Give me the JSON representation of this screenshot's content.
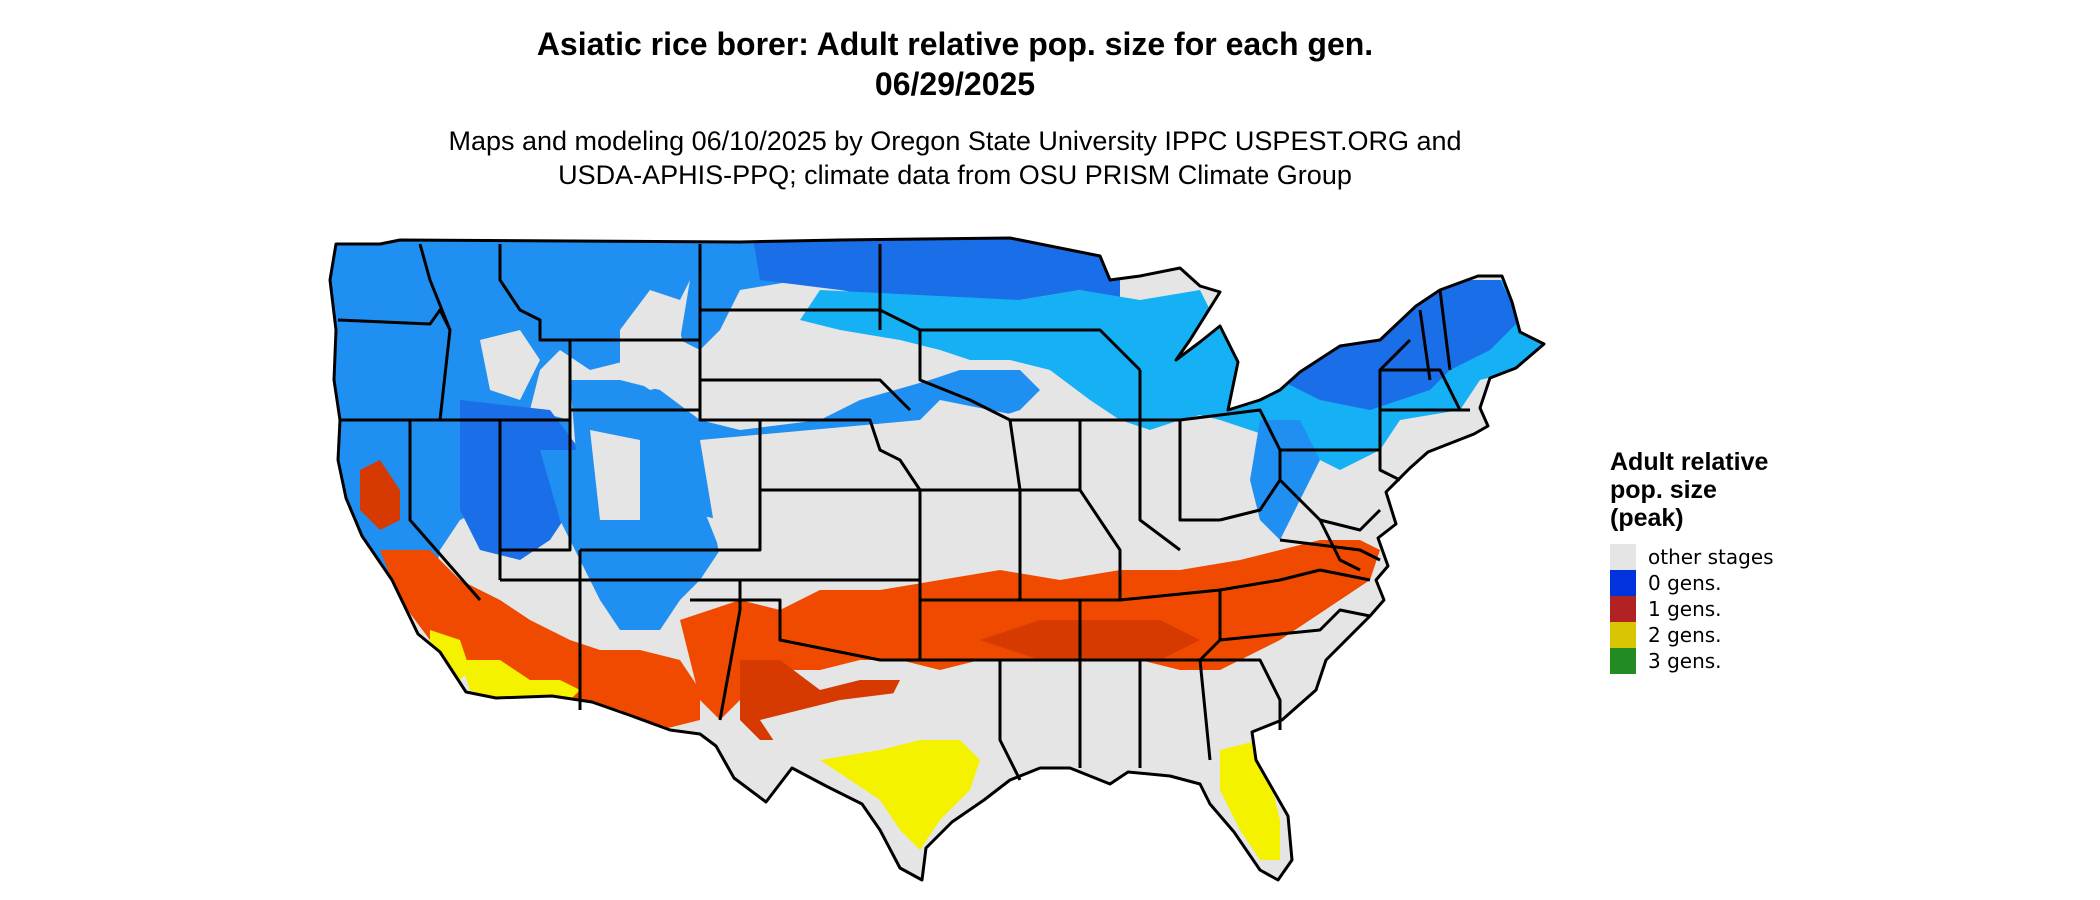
{
  "title_line1": "Asiatic rice borer: Adult relative pop. size for each gen.",
  "title_line2": "06/29/2025",
  "subtitle_line1": "Maps and modeling 06/10/2025 by Oregon State University IPPC USPEST.ORG and",
  "subtitle_line2": "USDA-APHIS-PPQ; climate data from OSU PRISM Climate Group",
  "legend": {
    "title_line1": "Adult relative",
    "title_line2": "pop. size",
    "title_line3": "(peak)",
    "items": [
      {
        "label": "other stages",
        "color": "#e5e5e5"
      },
      {
        "label": "0 gens.",
        "color": "#0033dd"
      },
      {
        "label": "1 gens.",
        "color": "#b22222"
      },
      {
        "label": "2 gens.",
        "color": "#d8c400"
      },
      {
        "label": "3 gens.",
        "color": "#228b22"
      }
    ]
  },
  "map_colors": {
    "other": "#e5e5e5",
    "blue_dark": "#1a6ee8",
    "blue_mid": "#1f8ff2",
    "blue_light": "#16b0f5",
    "red": "#f04a00",
    "red_dark": "#d63a00",
    "yellow": "#f5f200",
    "green": "#33cc33",
    "border": "#000000"
  }
}
